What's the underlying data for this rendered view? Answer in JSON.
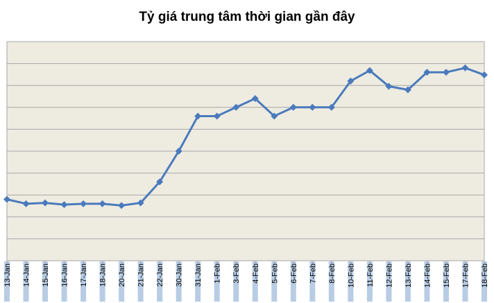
{
  "chart_data": {
    "type": "line",
    "title": "Tỷ giá trung tâm thời gian gần đây",
    "xlabel": "",
    "ylabel": "",
    "categories": [
      "13-Jan",
      "14-Jan",
      "15-Jan",
      "16-Jan",
      "17-Jan",
      "18-Jan",
      "20-Jan",
      "21-Jan",
      "22-Jan",
      "30-Jan",
      "31-Jan",
      "1-Feb",
      "3-Feb",
      "4-Feb",
      "5-Feb",
      "6-Feb",
      "7-Feb",
      "8-Feb",
      "10-Feb",
      "11-Feb",
      "12-Feb",
      "13-Feb",
      "14-Feb",
      "15-Feb",
      "17-Feb",
      "18-Feb"
    ],
    "series": [
      {
        "values": [
          7.0,
          6.5,
          6.6,
          6.4,
          6.5,
          6.5,
          6.3,
          6.6,
          9.0,
          12.5,
          16.5,
          16.5,
          17.5,
          18.5,
          16.5,
          17.5,
          17.5,
          17.5,
          20.5,
          21.7,
          19.9,
          19.5,
          21.5,
          21.5,
          22.0,
          21.2
        ],
        "color": "#4a7abc"
      }
    ],
    "ylim": [
      0,
      25
    ],
    "y_gridlines": 10,
    "y_tick_labels_shown": false,
    "grid": true,
    "plot_background": "#eeece1",
    "gridline_color": "#a6a6a6",
    "tick_label_band_color": "#b8cce4",
    "legend": "none",
    "marker": "diamond"
  }
}
